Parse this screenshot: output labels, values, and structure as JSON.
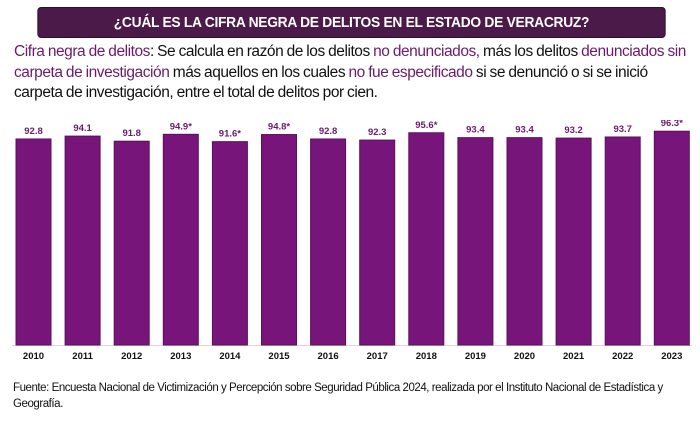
{
  "header": {
    "title": "¿CUÁL ES LA CIFRA NEGRA DE DELITOS  EN EL ESTADO DE VERACRUZ?"
  },
  "description": {
    "segments": [
      {
        "text": "Cifra negra de delitos",
        "highlight": true
      },
      {
        "text": ": Se calcula en razón de los delitos ",
        "highlight": false
      },
      {
        "text": "no denunciados,",
        "highlight": true
      },
      {
        "text": " más los delitos ",
        "highlight": false
      },
      {
        "text": "denunciados sin carpeta de investigación",
        "highlight": true
      },
      {
        "text": " más aquellos en los cuales ",
        "highlight": false
      },
      {
        "text": "no fue especificado",
        "highlight": true
      },
      {
        "text": " si se denunció o si se inició carpeta de investigación, entre el total de delitos por cien.",
        "highlight": false
      }
    ]
  },
  "colors": {
    "banner": "#4b1a49",
    "bar": "#78157a",
    "bar_border": "#5a0f5c",
    "highlight_text": "#6a1b6b",
    "data_label": "#6a1b6b",
    "axis": "#e0d0e0"
  },
  "chart_data": {
    "type": "bar",
    "title": "¿CUÁL ES LA CIFRA NEGRA DE DELITOS  EN EL ESTADO DE VERACRUZ?",
    "xlabel": "",
    "ylabel": "",
    "categories": [
      "2010",
      "2011",
      "2012",
      "2013",
      "2014",
      "2015",
      "2016",
      "2017",
      "2018",
      "2019",
      "2020",
      "2021",
      "2022",
      "2023"
    ],
    "values": [
      92.8,
      94.1,
      91.8,
      94.9,
      91.6,
      94.8,
      92.8,
      92.3,
      95.6,
      93.4,
      93.4,
      93.2,
      93.7,
      96.3
    ],
    "data_labels": [
      "92.8",
      "94.1",
      "91.8",
      "94.9*",
      "91.6*",
      "94.8*",
      "92.8",
      "92.3",
      "95.6*",
      "93.4",
      "93.4",
      "93.2",
      "93.7",
      "96.3*"
    ],
    "ylim": [
      0,
      100
    ],
    "grid": false,
    "legend": "none"
  },
  "footer": {
    "source": "Fuente: Encuesta Nacional de Victimización y Percepción sobre Seguridad Pública 2024, realizada por el Instituto Nacional de Estadística y Geografía."
  }
}
